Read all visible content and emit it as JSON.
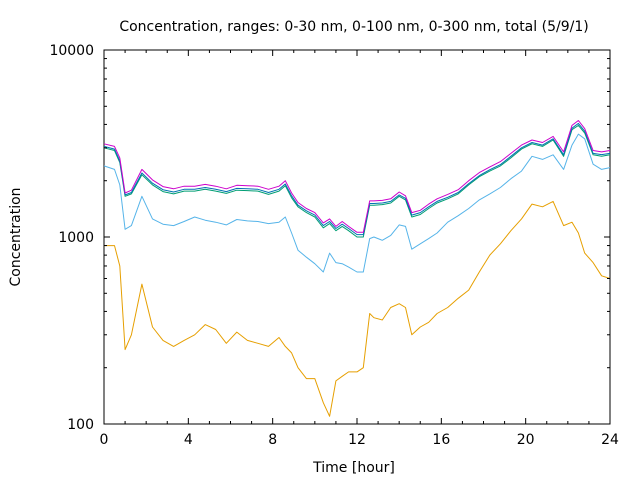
{
  "chart_data": {
    "type": "line",
    "title": "Concentration, ranges: 0-30 nm, 0-100 nm, 0-300 nm, total (5/9/1)",
    "xlabel": "Time [hour]",
    "ylabel": "Concentration",
    "xlim": [
      0,
      24
    ],
    "ylim": [
      100,
      10000
    ],
    "yscale": "log",
    "grid": false,
    "legend": "none",
    "x_ticks": [
      {
        "v": 0,
        "label": "0"
      },
      {
        "v": 4,
        "label": "4"
      },
      {
        "v": 8,
        "label": "8"
      },
      {
        "v": 12,
        "label": "12"
      },
      {
        "v": 16,
        "label": "16"
      },
      {
        "v": 20,
        "label": "20"
      },
      {
        "v": 24,
        "label": "24"
      }
    ],
    "y_ticks": [
      {
        "v": 100,
        "label": "100"
      },
      {
        "v": 1000,
        "label": "1000"
      },
      {
        "v": 10000,
        "label": "10000"
      }
    ],
    "x": [
      0,
      0.5,
      0.75,
      1,
      1.3,
      1.8,
      2.3,
      2.8,
      3.3,
      3.8,
      4.3,
      4.8,
      5.3,
      5.8,
      6.3,
      6.8,
      7.3,
      7.8,
      8.3,
      8.6,
      8.9,
      9.2,
      9.6,
      10,
      10.4,
      10.7,
      11,
      11.3,
      11.6,
      12,
      12.3,
      12.6,
      12.8,
      13.2,
      13.6,
      14,
      14.3,
      14.6,
      15,
      15.4,
      15.8,
      16.3,
      16.8,
      17.3,
      17.8,
      18.3,
      18.8,
      19.3,
      19.8,
      20.3,
      20.8,
      21.3,
      21.8,
      22.2,
      22.5,
      22.8,
      23.2,
      23.6,
      24
    ],
    "series": [
      {
        "color": "#e69f00",
        "values": [
          900,
          900,
          700,
          250,
          300,
          560,
          330,
          280,
          260,
          280,
          300,
          340,
          320,
          270,
          310,
          280,
          270,
          260,
          290,
          260,
          240,
          200,
          175,
          175,
          130,
          110,
          170,
          180,
          190,
          190,
          200,
          390,
          370,
          360,
          420,
          440,
          420,
          300,
          330,
          350,
          390,
          420,
          470,
          520,
          650,
          800,
          920,
          1080,
          1250,
          1500,
          1450,
          1550,
          1150,
          1200,
          1050,
          820,
          730,
          620,
          600
        ]
      },
      {
        "color": "#56b4e9",
        "values": [
          2400,
          2300,
          1900,
          1100,
          1150,
          1650,
          1250,
          1170,
          1150,
          1210,
          1280,
          1230,
          1200,
          1160,
          1240,
          1220,
          1210,
          1180,
          1200,
          1280,
          1050,
          850,
          780,
          720,
          650,
          820,
          730,
          720,
          690,
          650,
          650,
          980,
          1000,
          960,
          1020,
          1160,
          1140,
          860,
          920,
          980,
          1050,
          1200,
          1300,
          1420,
          1580,
          1700,
          1840,
          2050,
          2250,
          2700,
          2600,
          2750,
          2300,
          3100,
          3550,
          3350,
          2450,
          2300,
          2350
        ]
      },
      {
        "color": "#009e73",
        "values": [
          3000,
          2900,
          2500,
          1650,
          1700,
          2150,
          1900,
          1750,
          1700,
          1760,
          1760,
          1800,
          1760,
          1710,
          1780,
          1770,
          1760,
          1690,
          1760,
          1880,
          1620,
          1450,
          1350,
          1280,
          1120,
          1180,
          1080,
          1140,
          1080,
          1000,
          1000,
          1480,
          1480,
          1490,
          1520,
          1650,
          1580,
          1280,
          1320,
          1420,
          1520,
          1600,
          1700,
          1900,
          2100,
          2250,
          2400,
          2650,
          2950,
          3150,
          3050,
          3300,
          2700,
          3750,
          3950,
          3600,
          2750,
          2700,
          2750
        ]
      },
      {
        "color": "#0072b2",
        "values": [
          3050,
          2950,
          2550,
          1680,
          1730,
          2200,
          1940,
          1790,
          1740,
          1800,
          1800,
          1840,
          1800,
          1750,
          1820,
          1810,
          1800,
          1730,
          1800,
          1920,
          1660,
          1480,
          1380,
          1310,
          1150,
          1210,
          1110,
          1170,
          1110,
          1030,
          1030,
          1510,
          1510,
          1520,
          1550,
          1680,
          1610,
          1310,
          1350,
          1450,
          1550,
          1630,
          1730,
          1930,
          2130,
          2290,
          2440,
          2700,
          3000,
          3200,
          3100,
          3350,
          2750,
          3820,
          4050,
          3680,
          2800,
          2760,
          2800
        ]
      },
      {
        "color": "#cc00cc",
        "values": [
          3150,
          3050,
          2650,
          1720,
          1780,
          2300,
          2020,
          1860,
          1810,
          1870,
          1870,
          1910,
          1870,
          1810,
          1890,
          1880,
          1870,
          1800,
          1870,
          2000,
          1720,
          1530,
          1420,
          1350,
          1190,
          1250,
          1140,
          1210,
          1140,
          1060,
          1060,
          1560,
          1560,
          1570,
          1600,
          1740,
          1660,
          1350,
          1390,
          1500,
          1600,
          1690,
          1790,
          2000,
          2210,
          2370,
          2530,
          2800,
          3100,
          3300,
          3200,
          3450,
          2850,
          3950,
          4200,
          3800,
          2900,
          2850,
          2900
        ]
      }
    ]
  }
}
